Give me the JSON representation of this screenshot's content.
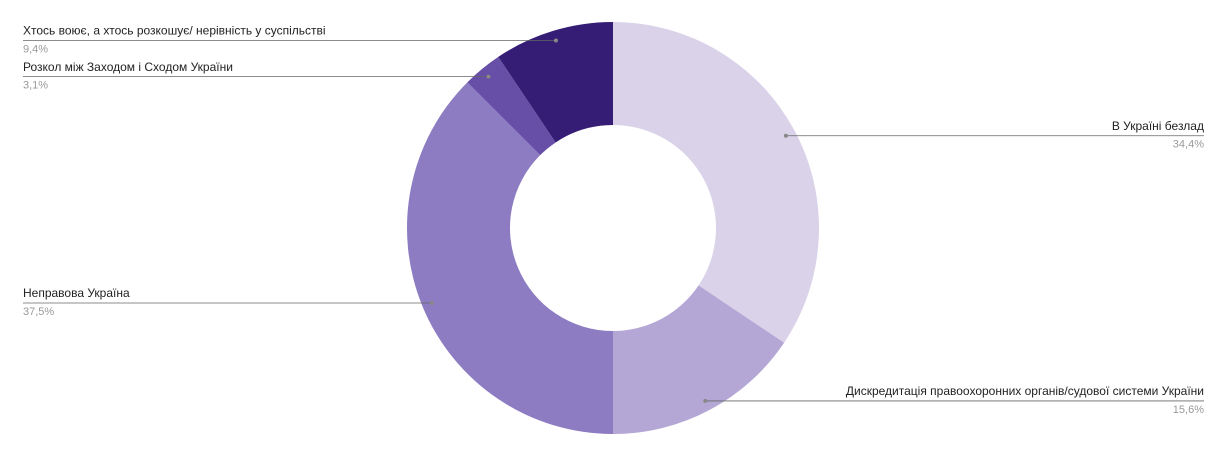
{
  "chart_data": {
    "type": "pie",
    "categories": [
      "В Україні безлад",
      "Дискредитація правоохоронних органів/судової системи України",
      "Неправова Україна",
      "Розкол між Заходом і Сходом України",
      "Хтось воює, а хтось розкошує/ нерівність у суспільстві"
    ],
    "values": [
      34.4,
      15.6,
      37.5,
      3.1,
      9.4
    ],
    "value_labels": [
      "34,4%",
      "15,6%",
      "37,5%",
      "3,1%",
      "9,4%"
    ],
    "colors": [
      "#d9d2e9",
      "#b4a7d6",
      "#8e7cc3",
      "#674ea7",
      "#351c75"
    ]
  }
}
